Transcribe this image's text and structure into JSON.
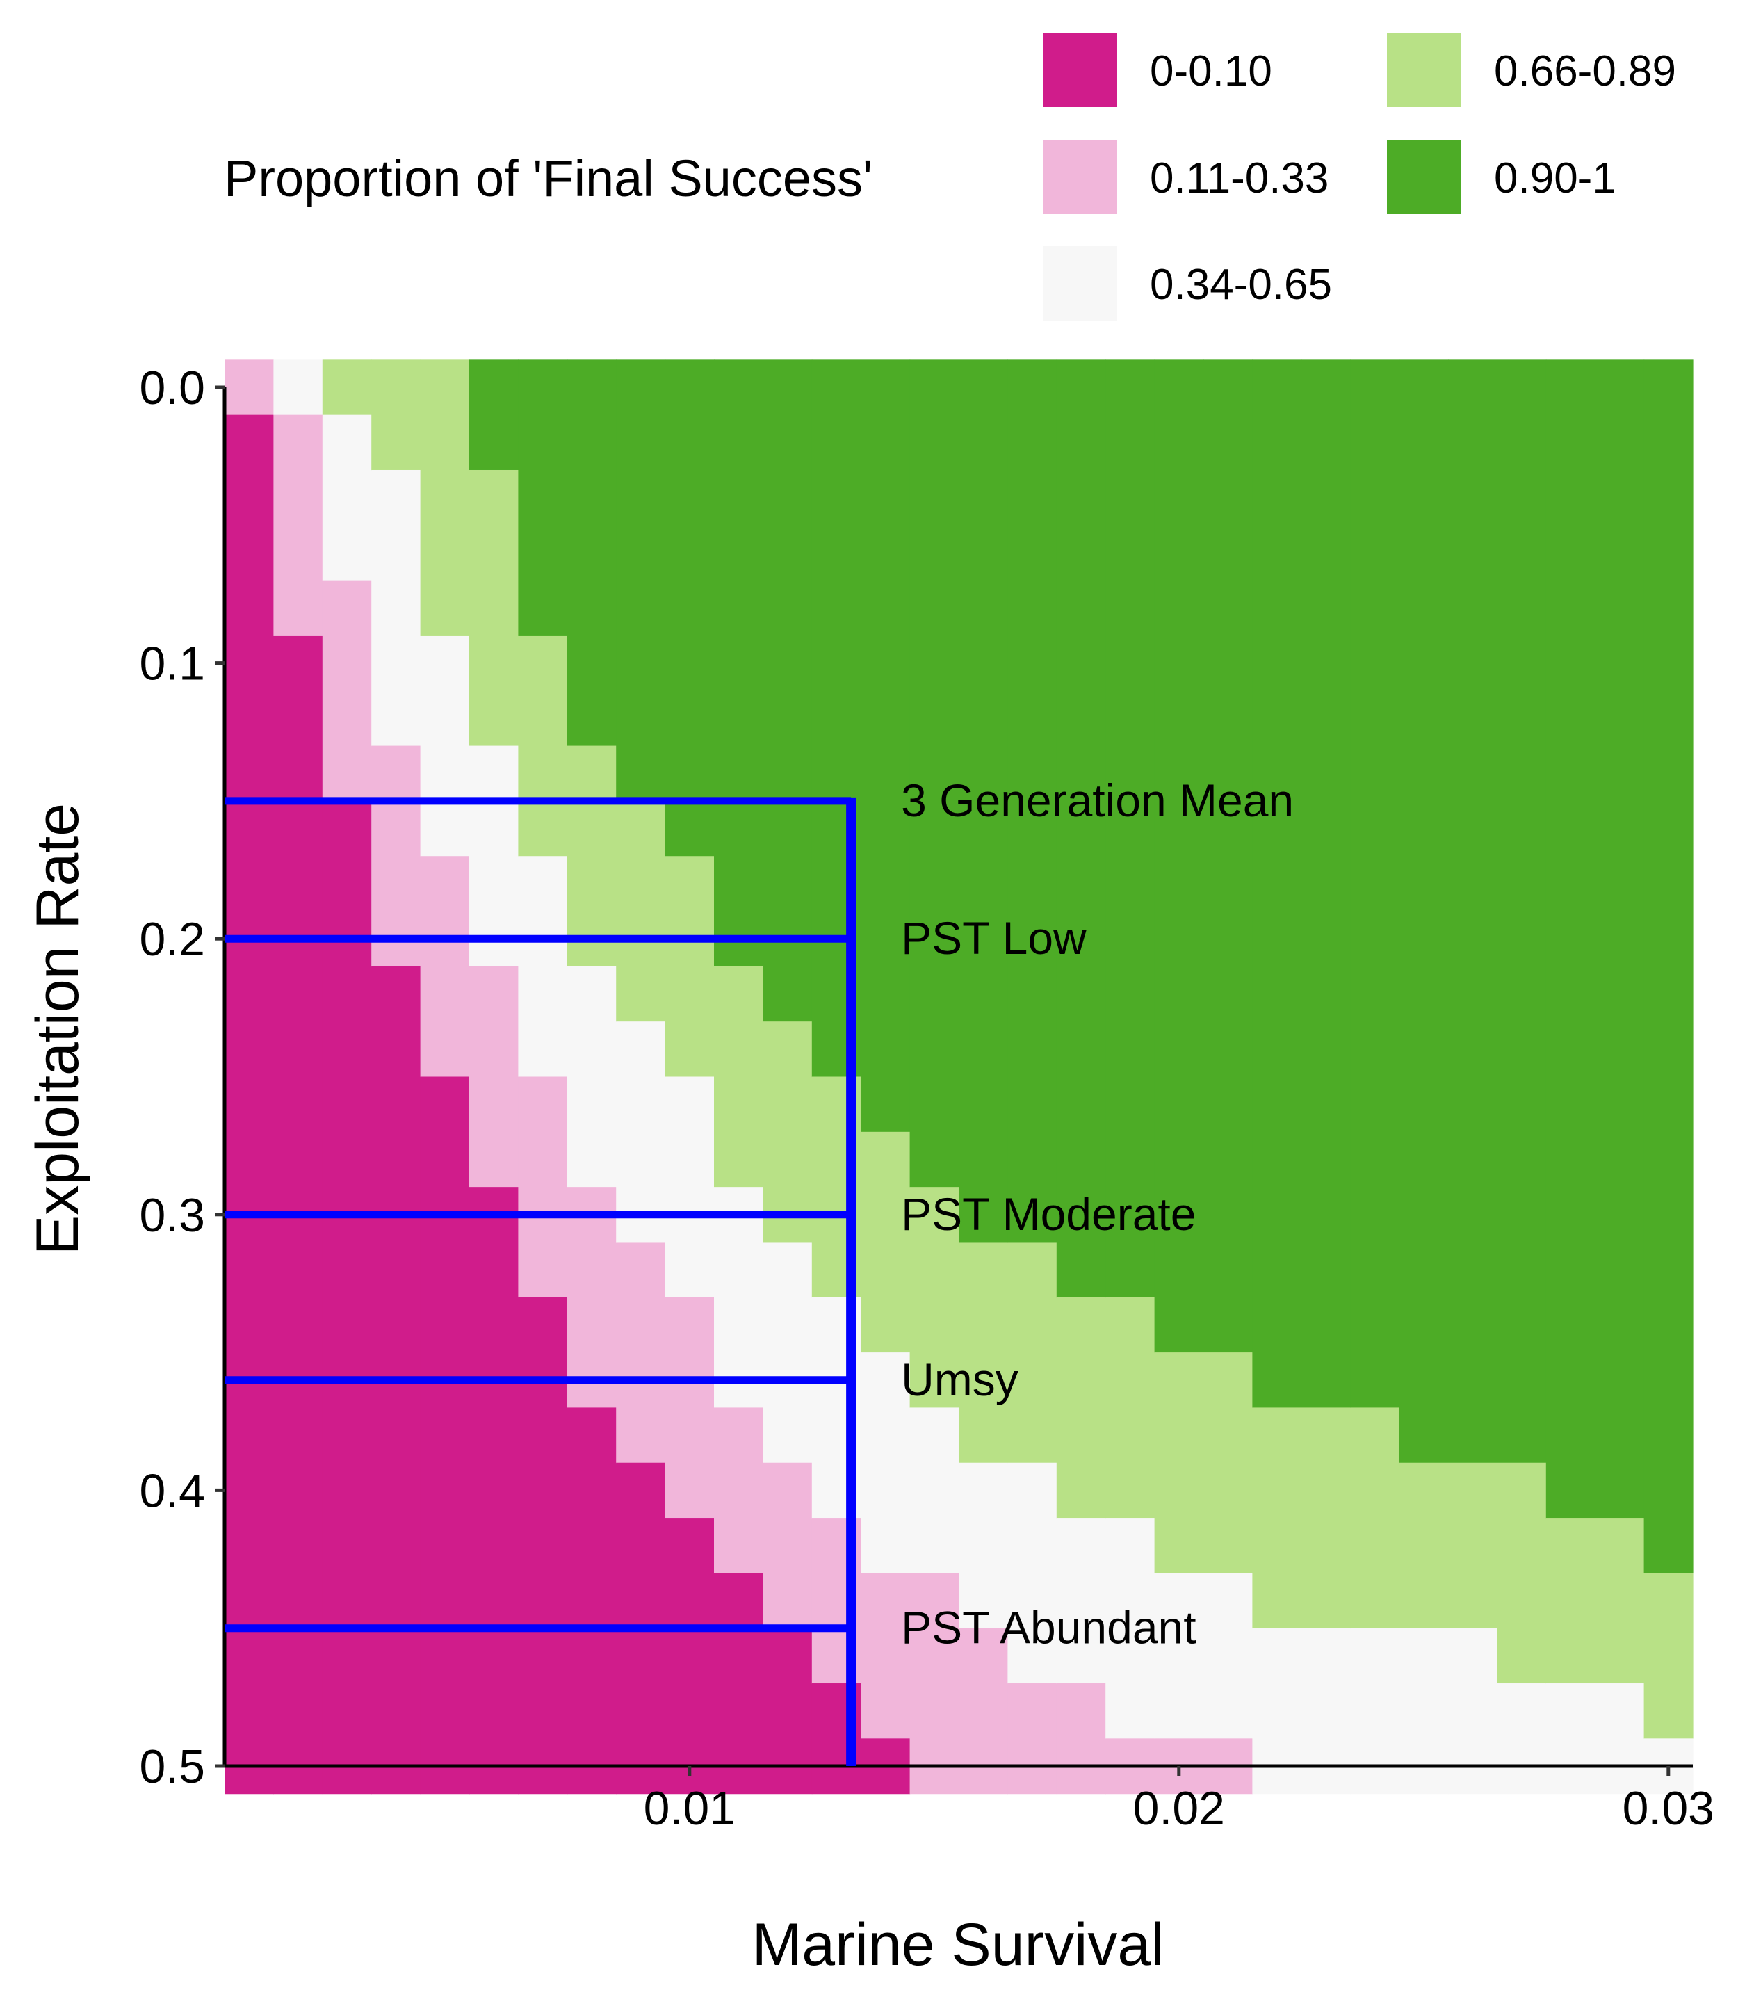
{
  "chart_data": {
    "type": "heatmap",
    "xlabel": "Marine Survival",
    "ylabel": "Exploitation Rate",
    "xlim": [
      0.0005,
      0.0305
    ],
    "ylim": [
      0.5,
      0.0
    ],
    "x_ticks": [
      {
        "value": 0.01,
        "label": "0.01"
      },
      {
        "value": 0.02,
        "label": "0.02"
      },
      {
        "value": 0.03,
        "label": "0.03"
      }
    ],
    "y_ticks": [
      {
        "value": 0.0,
        "label": "0.0"
      },
      {
        "value": 0.1,
        "label": "0.1"
      },
      {
        "value": 0.2,
        "label": "0.2"
      },
      {
        "value": 0.3,
        "label": "0.3"
      },
      {
        "value": 0.4,
        "label": "0.4"
      },
      {
        "value": 0.5,
        "label": "0.5"
      }
    ],
    "legend": {
      "title": "Proportion of 'Final Success'",
      "placement": "top",
      "items": [
        {
          "label": "0-0.10",
          "color": "#d01c8b"
        },
        {
          "label": "0.11-0.33",
          "color": "#f1b6da"
        },
        {
          "label": "0.34-0.65",
          "color": "#f7f7f7"
        },
        {
          "label": "0.66-0.89",
          "color": "#b8e186"
        },
        {
          "label": "0.90-1",
          "color": "#4dac26"
        }
      ]
    },
    "x_step": 0.001,
    "y_step": 0.02,
    "grid": false,
    "boundaries_note": "For each marine survival column: exploitation-rate upper limits of the classes 0.90-1, 0.66-0.89, 0.34-0.65, 0.11-0.33",
    "columns": [
      {
        "x": 0.001,
        "limits": [
          -1,
          -1,
          -1,
          0.0
        ]
      },
      {
        "x": 0.002,
        "limits": [
          -1,
          -1,
          0.0,
          0.08
        ]
      },
      {
        "x": 0.003,
        "limits": [
          -1,
          0.0,
          0.06,
          0.14
        ]
      },
      {
        "x": 0.004,
        "limits": [
          -1,
          0.02,
          0.12,
          0.2
        ]
      },
      {
        "x": 0.005,
        "limits": [
          -1,
          0.08,
          0.16,
          0.24
        ]
      },
      {
        "x": 0.006,
        "limits": [
          0.02,
          0.12,
          0.2,
          0.28
        ]
      },
      {
        "x": 0.007,
        "limits": [
          0.08,
          0.16,
          0.24,
          0.32
        ]
      },
      {
        "x": 0.008,
        "limits": [
          0.12,
          0.2,
          0.28,
          0.36
        ]
      },
      {
        "x": 0.009,
        "limits": [
          0.14,
          0.22,
          0.3,
          0.38
        ]
      },
      {
        "x": 0.01,
        "limits": [
          0.16,
          0.24,
          0.32,
          0.4
        ]
      },
      {
        "x": 0.011,
        "limits": [
          0.2,
          0.28,
          0.36,
          0.42
        ]
      },
      {
        "x": 0.012,
        "limits": [
          0.22,
          0.3,
          0.38,
          0.44
        ]
      },
      {
        "x": 0.013,
        "limits": [
          0.24,
          0.32,
          0.4,
          0.46
        ]
      },
      {
        "x": 0.014,
        "limits": [
          0.26,
          0.34,
          0.42,
          0.48
        ]
      },
      {
        "x": 0.015,
        "limits": [
          0.28,
          0.36,
          0.42,
          0.5
        ]
      },
      {
        "x": 0.016,
        "limits": [
          0.3,
          0.38,
          0.44,
          0.52
        ]
      },
      {
        "x": 0.017,
        "limits": [
          0.3,
          0.38,
          0.46,
          0.52
        ]
      },
      {
        "x": 0.018,
        "limits": [
          0.32,
          0.4,
          0.46,
          0.52
        ]
      },
      {
        "x": 0.019,
        "limits": [
          0.32,
          0.4,
          0.48,
          0.52
        ]
      },
      {
        "x": 0.02,
        "limits": [
          0.34,
          0.42,
          0.48,
          0.52
        ]
      },
      {
        "x": 0.021,
        "limits": [
          0.34,
          0.42,
          0.48,
          0.52
        ]
      },
      {
        "x": 0.022,
        "limits": [
          0.36,
          0.44,
          0.5,
          0.52
        ]
      },
      {
        "x": 0.023,
        "limits": [
          0.36,
          0.44,
          0.5,
          0.52
        ]
      },
      {
        "x": 0.024,
        "limits": [
          0.36,
          0.44,
          0.52,
          0.52
        ]
      },
      {
        "x": 0.025,
        "limits": [
          0.38,
          0.44,
          0.52,
          0.52
        ]
      },
      {
        "x": 0.026,
        "limits": [
          0.38,
          0.44,
          0.52,
          0.52
        ]
      },
      {
        "x": 0.027,
        "limits": [
          0.38,
          0.46,
          0.52,
          0.52
        ]
      },
      {
        "x": 0.028,
        "limits": [
          0.4,
          0.46,
          0.52,
          0.52
        ]
      },
      {
        "x": 0.029,
        "limits": [
          0.4,
          0.46,
          0.52,
          0.52
        ]
      },
      {
        "x": 0.03,
        "limits": [
          0.42,
          0.48,
          0.52,
          0.52
        ]
      }
    ],
    "reference_lines": {
      "color": "#0000ff",
      "x_end": 0.0133,
      "vertical_y_range": [
        0.15,
        0.5
      ],
      "lines": [
        {
          "y": 0.15,
          "label": "3 Generation Mean"
        },
        {
          "y": 0.2,
          "label": "PST Low"
        },
        {
          "y": 0.3,
          "label": "PST Moderate"
        },
        {
          "y": 0.36,
          "label": "Umsy"
        },
        {
          "y": 0.45,
          "label": "PST Abundant"
        }
      ]
    }
  }
}
